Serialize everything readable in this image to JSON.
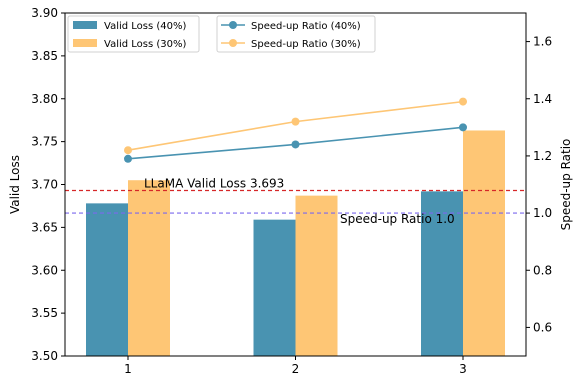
{
  "chart_data": {
    "type": "bar",
    "xlabel": "",
    "ylabel": "Valid Loss",
    "y2label": "Speed-up Ratio",
    "categories": [
      "1",
      "2",
      "3"
    ],
    "ylim": [
      3.5,
      3.9
    ],
    "y_ticks": [
      "3.50",
      "3.55",
      "3.60",
      "3.65",
      "3.70",
      "3.75",
      "3.80",
      "3.85",
      "3.90"
    ],
    "y2lim": [
      0.5,
      1.7
    ],
    "y2_ticks": [
      "0.6",
      "0.8",
      "1.0",
      "1.2",
      "1.4",
      "1.6"
    ],
    "bar_series": [
      {
        "name": "Valid Loss (40%)",
        "values": [
          3.678,
          3.659,
          3.692
        ],
        "color": "#4993b1"
      },
      {
        "name": "Valid Loss (30%)",
        "values": [
          3.705,
          3.687,
          3.763
        ],
        "color": "#fec675"
      }
    ],
    "line_series": [
      {
        "name": "Speed-up Ratio (40%)",
        "values": [
          1.19,
          1.24,
          1.3
        ],
        "color": "#4993b1",
        "axis": "right"
      },
      {
        "name": "Speed-up Ratio (30%)",
        "values": [
          1.22,
          1.32,
          1.39
        ],
        "color": "#fec675",
        "axis": "right"
      }
    ],
    "reference_lines": [
      {
        "label": "LLaMA Valid Loss 3.693",
        "value": 3.693,
        "axis": "left",
        "color": "#d62728"
      },
      {
        "label": "Speed-up Ratio 1.0",
        "value": 1.0,
        "axis": "right",
        "color": "#7b68ee"
      }
    ],
    "grid": false,
    "legend_bars_position": "top-left",
    "legend_lines_position": "top-center"
  }
}
